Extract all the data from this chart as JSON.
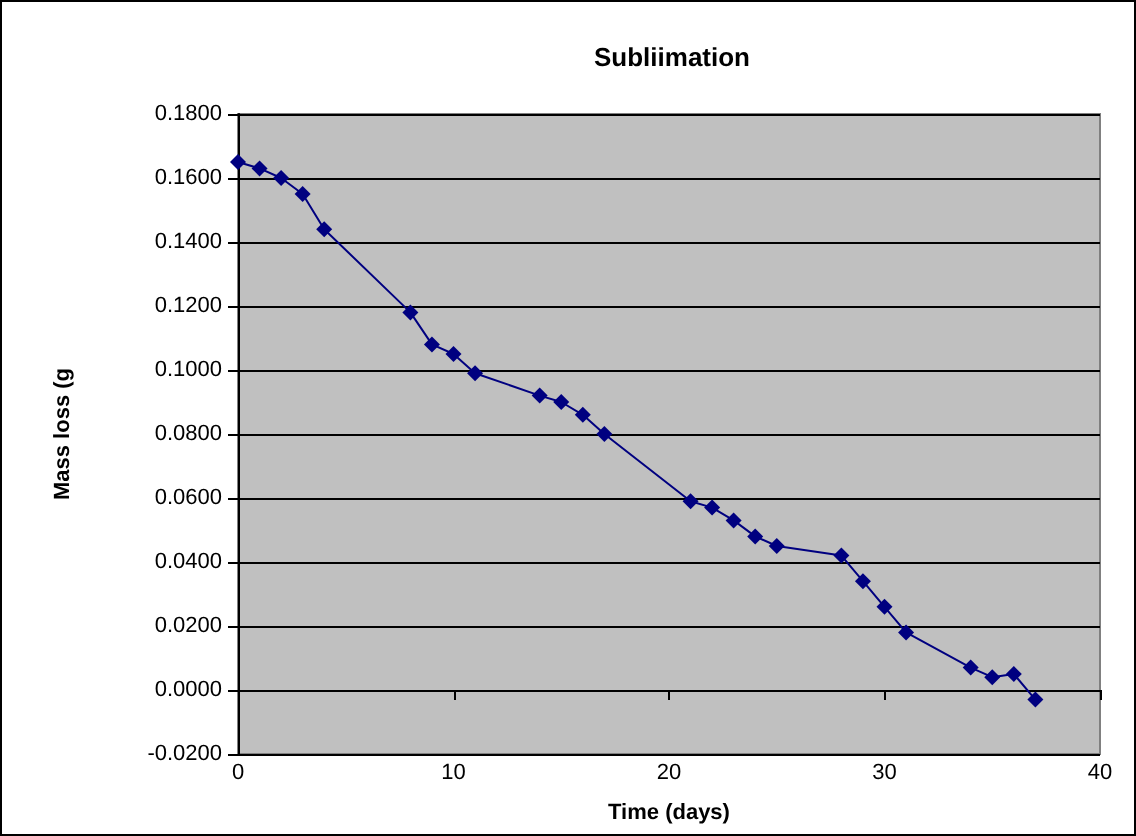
{
  "chart_data": {
    "type": "line",
    "title": "Subliimation",
    "xlabel": "Time (days)",
    "ylabel": "Mass loss (g",
    "x": [
      0,
      1,
      2,
      3,
      4,
      8,
      9,
      10,
      11,
      14,
      15,
      16,
      17,
      21,
      22,
      23,
      24,
      25,
      28,
      29,
      30,
      31,
      34,
      35,
      36,
      37
    ],
    "series": [
      {
        "color": "#000080",
        "values": [
          0.165,
          0.163,
          0.16,
          0.155,
          0.144,
          0.118,
          0.108,
          0.105,
          0.099,
          0.092,
          0.09,
          0.086,
          0.08,
          0.059,
          0.057,
          0.053,
          0.048,
          0.045,
          0.042,
          0.034,
          0.026,
          0.018,
          0.007,
          0.004,
          0.005,
          -0.003
        ]
      }
    ],
    "xlim": [
      0,
      40
    ],
    "xticks": [
      0,
      10,
      20,
      30,
      40
    ],
    "ylim": [
      -0.02,
      0.18
    ],
    "yticks": [
      {
        "value": -0.02,
        "label": "-0.0200"
      },
      {
        "value": 0,
        "label": "0.0000"
      },
      {
        "value": 0.02,
        "label": "0.0200"
      },
      {
        "value": 0.04,
        "label": "0.0400"
      },
      {
        "value": 0.06,
        "label": "0.0600"
      },
      {
        "value": 0.08,
        "label": "0.0800"
      },
      {
        "value": 0.1,
        "label": "0.1000"
      },
      {
        "value": 0.12,
        "label": "0.1200"
      },
      {
        "value": 0.14,
        "label": "0.1400"
      },
      {
        "value": 0.16,
        "label": "0.1600"
      },
      {
        "value": 0.18,
        "label": "0.1800"
      }
    ],
    "grid": "y",
    "marker": "diamond",
    "line_style": "solid"
  }
}
